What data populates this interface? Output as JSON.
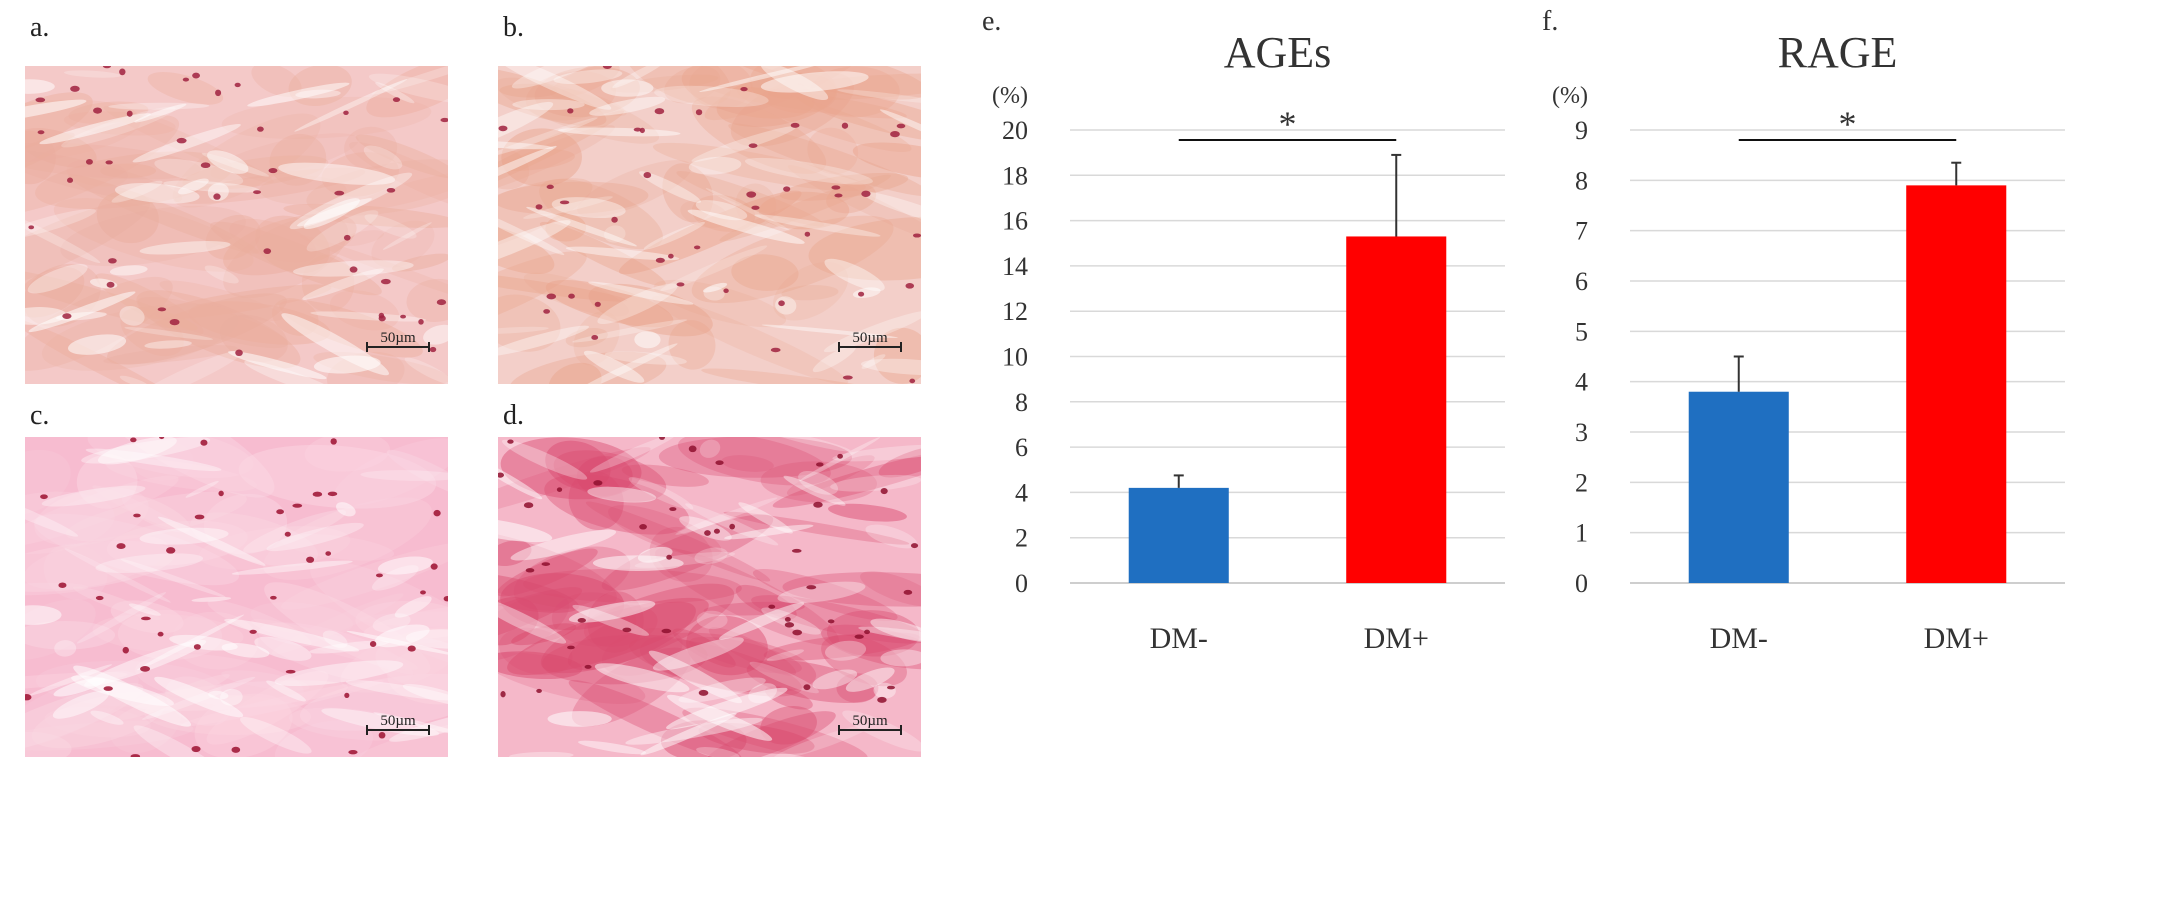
{
  "panels": {
    "a": {
      "letter": "a.",
      "scale": "50µm",
      "tone": "#f4c9c8",
      "accent": "#ebae9e",
      "nucleus": "#a0223f"
    },
    "b": {
      "letter": "b.",
      "scale": "50µm",
      "tone": "#f3cfc9",
      "accent": "#e9a48c",
      "nucleus": "#a0223f"
    },
    "c": {
      "letter": "c.",
      "scale": "50µm",
      "tone": "#f7bcd0",
      "accent": "#fbd8e3",
      "nucleus": "#9c1030"
    },
    "d": {
      "letter": "d.",
      "scale": "50µm",
      "tone": "#f5b8c9",
      "accent": "#d94a6e",
      "nucleus": "#8e0f2e"
    }
  },
  "chart_data": [
    {
      "panel_letter": "e.",
      "type": "bar",
      "title": "AGEs",
      "ylabel": "(%)",
      "categories": [
        "DM-",
        "DM+"
      ],
      "values": [
        4.2,
        15.3
      ],
      "errors": [
        0.55,
        3.6
      ],
      "colors": [
        "#1f6fc1",
        "#ff0000"
      ],
      "ylim": [
        0,
        20
      ],
      "yticks": [
        0,
        2,
        4,
        6,
        8,
        10,
        12,
        14,
        16,
        18,
        20
      ],
      "significance": "*",
      "grid": true
    },
    {
      "panel_letter": "f.",
      "type": "bar",
      "title": "RAGE",
      "ylabel": "(%)",
      "categories": [
        "DM-",
        "DM+"
      ],
      "values": [
        3.8,
        7.9
      ],
      "errors": [
        0.7,
        0.45
      ],
      "colors": [
        "#1f6fc1",
        "#ff0000"
      ],
      "ylim": [
        0,
        9
      ],
      "yticks": [
        0,
        1,
        2,
        3,
        4,
        5,
        6,
        7,
        8,
        9
      ],
      "significance": "*",
      "grid": true
    }
  ]
}
